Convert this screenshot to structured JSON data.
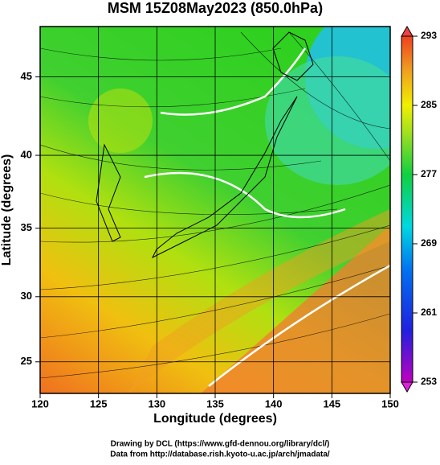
{
  "chart_data": {
    "type": "map",
    "title": "MSM 15Z08May2023 (850.0hPa)",
    "x_label": "Longitude (degrees)",
    "y_label": "Latitude  (degrees)",
    "xlim": [
      120,
      150
    ],
    "xticks": [
      120,
      125,
      130,
      135,
      140,
      145,
      150
    ],
    "ylim": [
      22.5,
      48
    ],
    "yticks": [
      25,
      30,
      35,
      40,
      45
    ],
    "projection": "mercator",
    "colorbar": {
      "lim": [
        253,
        293
      ],
      "ticks": [
        253,
        261,
        269,
        277,
        285,
        293
      ]
    },
    "footer": [
      "Drawing by DCL (https://www.gfd-dennou.org/library/dcl/)",
      "Data from http://database.rish.kyoto-u.ac.jp/arch/jmadata/"
    ]
  }
}
